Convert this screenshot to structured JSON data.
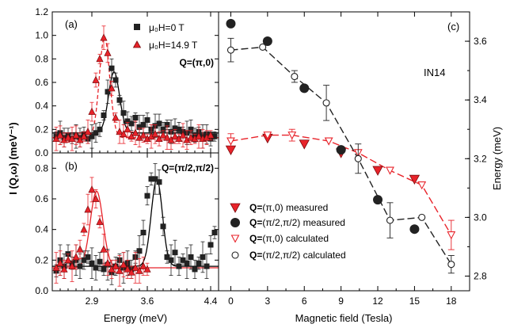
{
  "figure": {
    "ylabel_left": "I (Q,ω) (meV⁻¹)",
    "ylabel_right": "Energy (meV)"
  },
  "chart_data": [
    {
      "id": "a",
      "type": "line",
      "panel_label": "(a)",
      "q_label": "Q=(π,0)",
      "xlim": [
        2.4,
        4.5
      ],
      "ylim": [
        0.0,
        1.2
      ],
      "xticks": [
        "2.9",
        "3.6",
        "4.4"
      ],
      "yticks": [
        "0.0",
        "0.2",
        "0.4",
        "0.6",
        "0.8",
        "1.0",
        "1.2"
      ],
      "legend": [
        {
          "label": "μ₀H=0 T",
          "marker": "square",
          "color": "#222222"
        },
        {
          "label": "μ₀H=14.9 T",
          "marker": "triangle-up",
          "color": "#e8232a"
        }
      ],
      "series": [
        {
          "name": "μ₀H=0 T",
          "marker": "square",
          "color": "#222222",
          "x": [
            2.45,
            2.5,
            2.55,
            2.6,
            2.65,
            2.7,
            2.75,
            2.8,
            2.85,
            2.9,
            2.95,
            3.0,
            3.05,
            3.1,
            3.15,
            3.2,
            3.25,
            3.3,
            3.35,
            3.4,
            3.45,
            3.5,
            3.55,
            3.6,
            3.65,
            3.7,
            3.75,
            3.8,
            3.85,
            3.9,
            3.95,
            4.0,
            4.05,
            4.1,
            4.15,
            4.2,
            4.25,
            4.3,
            4.35,
            4.4,
            4.45
          ],
          "y": [
            0.14,
            0.17,
            0.13,
            0.15,
            0.12,
            0.14,
            0.13,
            0.16,
            0.12,
            0.14,
            0.17,
            0.2,
            0.32,
            0.52,
            0.72,
            0.62,
            0.45,
            0.34,
            0.27,
            0.25,
            0.3,
            0.22,
            0.24,
            0.28,
            0.2,
            0.23,
            0.25,
            0.2,
            0.24,
            0.18,
            0.21,
            0.2,
            0.18,
            0.17,
            0.2,
            0.15,
            0.18,
            0.14,
            0.16,
            0.12,
            0.14
          ]
        },
        {
          "name": "μ₀H=14.9 T",
          "marker": "triangle-up",
          "color": "#e8232a",
          "x": [
            2.45,
            2.5,
            2.55,
            2.6,
            2.65,
            2.7,
            2.75,
            2.8,
            2.85,
            2.9,
            2.95,
            3.0,
            3.05,
            3.1,
            3.15,
            3.2,
            3.25,
            3.3,
            3.35,
            3.4,
            3.45,
            3.5,
            3.55,
            3.6,
            3.65,
            3.7,
            3.75,
            3.8,
            3.85,
            3.9,
            3.95,
            4.0,
            4.05,
            4.1,
            4.15,
            4.2,
            4.25,
            4.3,
            4.35,
            4.4
          ],
          "y": [
            0.12,
            0.15,
            0.11,
            0.13,
            0.12,
            0.15,
            0.11,
            0.14,
            0.18,
            0.35,
            0.62,
            0.8,
            0.98,
            0.85,
            0.55,
            0.3,
            0.18,
            0.16,
            0.2,
            0.14,
            0.17,
            0.13,
            0.15,
            0.12,
            0.14,
            0.16,
            0.12,
            0.15,
            0.13,
            0.11,
            0.14,
            0.12,
            0.15,
            0.11,
            0.13,
            0.12,
            0.14,
            0.12,
            0.13,
            0.15
          ]
        }
      ],
      "fits": [
        {
          "name": "μ₀H=0 T",
          "color": "#000000",
          "dash": "solid",
          "baseline": 0.17,
          "amplitude": 0.52,
          "center": 3.18,
          "sigma": 0.07
        },
        {
          "name": "μ₀H=14.9 T",
          "color": "#e8232a",
          "dash": "dashed",
          "baseline": 0.13,
          "amplitude": 0.86,
          "center": 3.06,
          "sigma": 0.065
        }
      ]
    },
    {
      "id": "b",
      "type": "line",
      "panel_label": "(b)",
      "q_label": "Q=(π/2,π/2)",
      "xlim": [
        2.4,
        4.5
      ],
      "ylim": [
        0.0,
        0.9
      ],
      "xticks": [
        "2.9",
        "3.6",
        "4.4"
      ],
      "yticks": [
        "0.0",
        "0.2",
        "0.4",
        "0.6",
        "0.8"
      ],
      "series": [
        {
          "name": "μ₀H=0 T",
          "marker": "square",
          "color": "#222222",
          "x": [
            2.45,
            2.5,
            2.55,
            2.6,
            2.65,
            2.7,
            2.75,
            2.8,
            2.85,
            2.9,
            2.95,
            3.0,
            3.05,
            3.1,
            3.15,
            3.2,
            3.25,
            3.3,
            3.35,
            3.4,
            3.45,
            3.5,
            3.55,
            3.6,
            3.65,
            3.7,
            3.75,
            3.8,
            3.85,
            3.9,
            3.95,
            4.0,
            4.05,
            4.1,
            4.15,
            4.2,
            4.25,
            4.3,
            4.35,
            4.4,
            4.45
          ],
          "y": [
            0.13,
            0.2,
            0.16,
            0.24,
            0.18,
            0.2,
            0.16,
            0.2,
            0.22,
            0.18,
            0.15,
            0.19,
            0.14,
            0.17,
            0.12,
            0.16,
            0.2,
            0.15,
            0.18,
            0.14,
            0.22,
            0.26,
            0.38,
            0.62,
            0.73,
            0.73,
            0.71,
            0.42,
            0.22,
            0.2,
            0.25,
            0.16,
            0.2,
            0.18,
            0.22,
            0.14,
            0.18,
            0.22,
            0.16,
            0.3,
            0.38
          ]
        },
        {
          "name": "μ₀H=14.9 T",
          "marker": "triangle-up",
          "color": "#e8232a",
          "x": [
            2.45,
            2.5,
            2.55,
            2.6,
            2.65,
            2.7,
            2.75,
            2.8,
            2.85,
            2.9,
            2.95,
            3.0,
            3.05,
            3.1,
            3.15,
            3.2,
            3.25,
            3.3,
            3.35,
            3.4,
            3.45,
            3.5,
            3.55,
            3.6
          ],
          "y": [
            0.15,
            0.18,
            0.14,
            0.2,
            0.16,
            0.22,
            0.27,
            0.4,
            0.53,
            0.66,
            0.6,
            0.45,
            0.27,
            0.18,
            0.14,
            0.16,
            0.13,
            0.17,
            0.14,
            0.12,
            0.15,
            0.13,
            0.16,
            0.14
          ]
        }
      ],
      "fits": [
        {
          "name": "μ₀H=0 T",
          "color": "#000000",
          "dash": "solid",
          "baseline": 0.16,
          "amplitude": 0.57,
          "center": 3.72,
          "sigma": 0.07
        },
        {
          "name": "μ₀H=14.9 T",
          "color": "#e8232a",
          "dash": "solid",
          "baseline": 0.15,
          "amplitude": 0.5,
          "center": 2.96,
          "sigma": 0.08
        }
      ]
    },
    {
      "id": "c",
      "type": "scatter",
      "panel_label": "(c)",
      "instrument_label": "IN14",
      "xlabel": "Magnetic field (Tesla)",
      "ylabel": "Energy (meV)",
      "xlim": [
        -1.0,
        19.5
      ],
      "ylim": [
        2.75,
        3.7
      ],
      "xticks": [
        "0",
        "3",
        "6",
        "9",
        "12",
        "15",
        "18"
      ],
      "yticks": [
        "2.8",
        "3.0",
        "3.2",
        "3.4",
        "3.6"
      ],
      "legend": [
        {
          "prefix": "Q=",
          "label": "(π,0) measured",
          "marker": "triangle-down-filled",
          "color": "#e8232a"
        },
        {
          "prefix": "Q=",
          "label": "(π/2,π/2) measured",
          "marker": "circle-filled",
          "color": "#222222"
        },
        {
          "prefix": "Q=",
          "label": "(π,0) calculated",
          "marker": "triangle-down-open",
          "color": "#e8232a"
        },
        {
          "prefix": "Q=",
          "label": "(π/2,π/2) calculated",
          "marker": "circle-open",
          "color": "#222222"
        }
      ],
      "series": [
        {
          "name": "Q=(π,0) measured",
          "marker": "triangle-down-filled",
          "color": "#e8232a",
          "x": [
            0,
            3,
            6,
            9,
            12,
            15
          ],
          "y": [
            3.23,
            3.27,
            3.25,
            3.22,
            3.16,
            3.13
          ]
        },
        {
          "name": "Q=(π/2,π/2) measured",
          "marker": "circle-filled",
          "color": "#222222",
          "x": [
            0,
            3,
            6,
            9,
            12,
            15
          ],
          "y": [
            3.66,
            3.6,
            3.44,
            3.23,
            3.06,
            2.96
          ]
        },
        {
          "name": "Q=(π,0) calculated",
          "marker": "triangle-down-open",
          "color": "#e8232a",
          "dashed": true,
          "x": [
            0,
            3,
            5,
            8,
            10.4,
            13,
            15.6,
            18
          ],
          "y": [
            3.26,
            3.28,
            3.28,
            3.26,
            3.22,
            3.16,
            3.11,
            2.94
          ],
          "err": [
            0.025,
            0.0,
            0.02,
            0.0,
            0.0,
            0.0,
            0.0,
            0.05
          ]
        },
        {
          "name": "Q=(π/2,π/2) calculated",
          "marker": "circle-open",
          "color": "#222222",
          "dashed": true,
          "x": [
            0,
            2.6,
            5.2,
            7.8,
            10.4,
            13,
            15.6,
            18
          ],
          "y": [
            3.57,
            3.58,
            3.48,
            3.39,
            3.2,
            2.99,
            3.0,
            2.84
          ],
          "err": [
            0.04,
            0.0,
            0.02,
            0.06,
            0.05,
            0.06,
            0.0,
            0.03
          ]
        }
      ]
    }
  ]
}
